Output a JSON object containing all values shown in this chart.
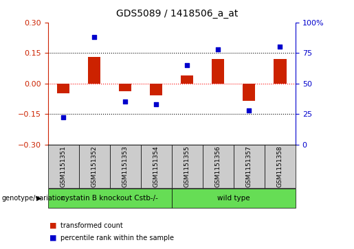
{
  "title": "GDS5089 / 1418506_a_at",
  "samples": [
    "GSM1151351",
    "GSM1151352",
    "GSM1151353",
    "GSM1151354",
    "GSM1151355",
    "GSM1151356",
    "GSM1151357",
    "GSM1151358"
  ],
  "red_bars": [
    -0.05,
    0.13,
    -0.04,
    -0.06,
    0.04,
    0.12,
    -0.085,
    0.12
  ],
  "blue_dots": [
    22,
    88,
    35,
    33,
    65,
    78,
    28,
    80
  ],
  "ylim": [
    -0.3,
    0.3
  ],
  "yticks_left": [
    -0.3,
    -0.15,
    0.0,
    0.15,
    0.3
  ],
  "yticks_right": [
    0,
    25,
    50,
    75,
    100
  ],
  "hlines_black": [
    0.15,
    -0.15
  ],
  "hline_red": 0.0,
  "genotype_label": "genotype/variation",
  "legend_red": "transformed count",
  "legend_blue": "percentile rank within the sample",
  "bar_color": "#cc2200",
  "dot_color": "#0000cc",
  "bg_color": "#ffffff",
  "title_fontsize": 10,
  "tick_fontsize": 8,
  "label_fontsize": 6.5,
  "bar_width": 0.4,
  "group1_label": "cystatin B knockout Cstb-/-",
  "group2_label": "wild type",
  "group_color": "#66dd55",
  "sample_box_color": "#cccccc"
}
